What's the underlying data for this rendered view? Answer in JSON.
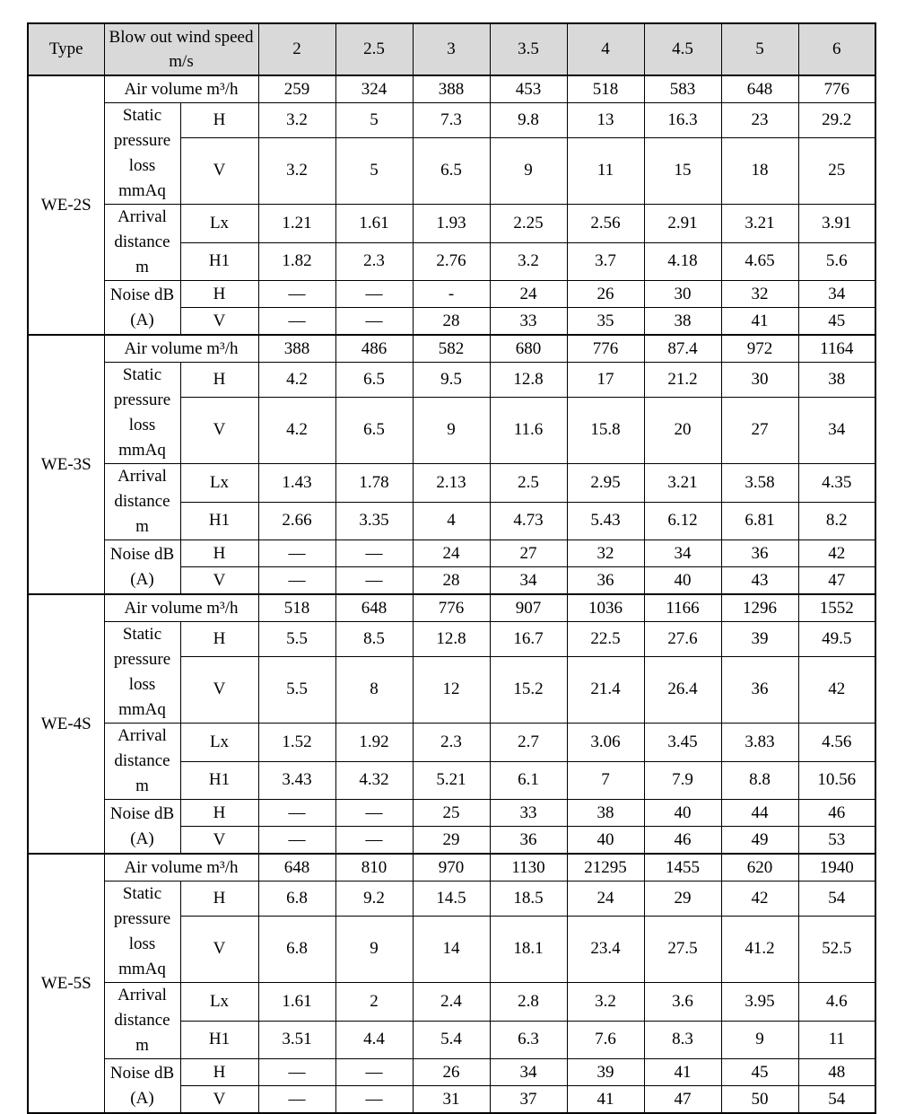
{
  "table": {
    "header_bg": "#d9d9d9",
    "border_color": "#000000",
    "header": {
      "type_label": "Type",
      "speed_label_lines": [
        "Blow out wind speed",
        "m/s"
      ],
      "speeds": [
        "2",
        "2.5",
        "3",
        "3.5",
        "4",
        "4.5",
        "5",
        "6"
      ]
    },
    "sections": [
      {
        "type": "WE-2S",
        "rows": [
          {
            "kind": "span",
            "label": "Air volume m³/h",
            "values": [
              "259",
              "324",
              "388",
              "453",
              "518",
              "583",
              "648",
              "776"
            ]
          },
          {
            "kind": "sub",
            "group": {
              "lines": [
                "Static",
                "pressure",
                "loss mmAq"
              ],
              "span": 2
            },
            "sub": "H",
            "values": [
              "3.2",
              "5",
              "7.3",
              "9.8",
              "13",
              "16.3",
              "23",
              "29.2"
            ]
          },
          {
            "kind": "sub",
            "sub": "V",
            "tall": true,
            "values": [
              "3.2",
              "5",
              "6.5",
              "9",
              "11",
              "15",
              "18",
              "25"
            ]
          },
          {
            "kind": "sub",
            "group": {
              "lines": [
                "Arrival",
                "distance m"
              ],
              "span": 2
            },
            "sub": "Lx",
            "values": [
              "1.21",
              "1.61",
              "1.93",
              "2.25",
              "2.56",
              "2.91",
              "3.21",
              "3.91"
            ]
          },
          {
            "kind": "sub",
            "sub": "H1",
            "values": [
              "1.82",
              "2.3",
              "2.76",
              "3.2",
              "3.7",
              "4.18",
              "4.65",
              "5.6"
            ]
          },
          {
            "kind": "sub",
            "group": {
              "lines": [
                "Noise dB",
                "(A)"
              ],
              "span": 2
            },
            "sub": "H",
            "values": [
              "—",
              "—",
              "-",
              "24",
              "26",
              "30",
              "32",
              "34"
            ]
          },
          {
            "kind": "sub",
            "sub": "V",
            "values": [
              "—",
              "—",
              "28",
              "33",
              "35",
              "38",
              "41",
              "45"
            ]
          }
        ]
      },
      {
        "type": "WE-3S",
        "rows": [
          {
            "kind": "span",
            "label": "Air volume m³/h",
            "values": [
              "388",
              "486",
              "582",
              "680",
              "776",
              "87.4",
              "972",
              "1164"
            ]
          },
          {
            "kind": "sub",
            "group": {
              "lines": [
                "Static",
                "pressure",
                "loss mmAq"
              ],
              "span": 2
            },
            "sub": "H",
            "values": [
              "4.2",
              "6.5",
              "9.5",
              "12.8",
              "17",
              "21.2",
              "30",
              "38"
            ]
          },
          {
            "kind": "sub",
            "sub": "V",
            "tall": true,
            "values": [
              "4.2",
              "6.5",
              "9",
              "11.6",
              "15.8",
              "20",
              "27",
              "34"
            ]
          },
          {
            "kind": "sub",
            "group": {
              "lines": [
                "Arrival",
                "distance m"
              ],
              "span": 2
            },
            "sub": "Lx",
            "values": [
              "1.43",
              "1.78",
              "2.13",
              "2.5",
              "2.95",
              "3.21",
              "3.58",
              "4.35"
            ]
          },
          {
            "kind": "sub",
            "sub": "H1",
            "values": [
              "2.66",
              "3.35",
              "4",
              "4.73",
              "5.43",
              "6.12",
              "6.81",
              "8.2"
            ]
          },
          {
            "kind": "sub",
            "group": {
              "lines": [
                "Noise dB",
                "(A)"
              ],
              "span": 2
            },
            "sub": "H",
            "values": [
              "—",
              "—",
              "24",
              "27",
              "32",
              "34",
              "36",
              "42"
            ]
          },
          {
            "kind": "sub",
            "sub": "V",
            "values": [
              "—",
              "—",
              "28",
              "34",
              "36",
              "40",
              "43",
              "47"
            ]
          }
        ]
      },
      {
        "type": "WE-4S",
        "rows": [
          {
            "kind": "span",
            "label": "Air volume m³/h",
            "values": [
              "518",
              "648",
              "776",
              "907",
              "1036",
              "1166",
              "1296",
              "1552"
            ]
          },
          {
            "kind": "sub",
            "group": {
              "lines": [
                "Static",
                "pressure",
                "loss mmAq"
              ],
              "span": 2
            },
            "sub": "H",
            "values": [
              "5.5",
              "8.5",
              "12.8",
              "16.7",
              "22.5",
              "27.6",
              "39",
              "49.5"
            ]
          },
          {
            "kind": "sub",
            "sub": "V",
            "tall": true,
            "values": [
              "5.5",
              "8",
              "12",
              "15.2",
              "21.4",
              "26.4",
              "36",
              "42"
            ]
          },
          {
            "kind": "sub",
            "group": {
              "lines": [
                "Arrival",
                "distance m"
              ],
              "span": 2
            },
            "sub": "Lx",
            "values": [
              "1.52",
              "1.92",
              "2.3",
              "2.7",
              "3.06",
              "3.45",
              "3.83",
              "4.56"
            ]
          },
          {
            "kind": "sub",
            "sub": "H1",
            "values": [
              "3.43",
              "4.32",
              "5.21",
              "6.1",
              "7",
              "7.9",
              "8.8",
              "10.56"
            ]
          },
          {
            "kind": "sub",
            "group": {
              "lines": [
                "Noise dB",
                "(A)"
              ],
              "span": 2
            },
            "sub": "H",
            "values": [
              "—",
              "—",
              "25",
              "33",
              "38",
              "40",
              "44",
              "46"
            ]
          },
          {
            "kind": "sub",
            "sub": "V",
            "values": [
              "—",
              "—",
              "29",
              "36",
              "40",
              "46",
              "49",
              "53"
            ]
          }
        ]
      },
      {
        "type": "WE-5S",
        "rows": [
          {
            "kind": "span",
            "label": "Air volume m³/h",
            "values": [
              "648",
              "810",
              "970",
              "1130",
              "21295",
              "1455",
              "620",
              "1940"
            ]
          },
          {
            "kind": "sub",
            "group": {
              "lines": [
                "Static",
                "pressure",
                "loss mmAq"
              ],
              "span": 2
            },
            "sub": "H",
            "values": [
              "6.8",
              "9.2",
              "14.5",
              "18.5",
              "24",
              "29",
              "42",
              "54"
            ]
          },
          {
            "kind": "sub",
            "sub": "V",
            "tall": true,
            "values": [
              "6.8",
              "9",
              "14",
              "18.1",
              "23.4",
              "27.5",
              "41.2",
              "52.5"
            ]
          },
          {
            "kind": "sub",
            "group": {
              "lines": [
                "Arrival",
                "distance m"
              ],
              "span": 2
            },
            "sub": "Lx",
            "values": [
              "1.61",
              "2",
              "2.4",
              "2.8",
              "3.2",
              "3.6",
              "3.95",
              "4.6"
            ]
          },
          {
            "kind": "sub",
            "sub": "H1",
            "values": [
              "3.51",
              "4.4",
              "5.4",
              "6.3",
              "7.6",
              "8.3",
              "9",
              "11"
            ]
          },
          {
            "kind": "sub",
            "group": {
              "lines": [
                "Noise dB",
                "(A)"
              ],
              "span": 2
            },
            "sub": "H",
            "values": [
              "—",
              "—",
              "26",
              "34",
              "39",
              "41",
              "45",
              "48"
            ]
          },
          {
            "kind": "sub",
            "sub": "V",
            "values": [
              "—",
              "—",
              "31",
              "37",
              "41",
              "47",
              "50",
              "54"
            ]
          }
        ]
      }
    ]
  }
}
